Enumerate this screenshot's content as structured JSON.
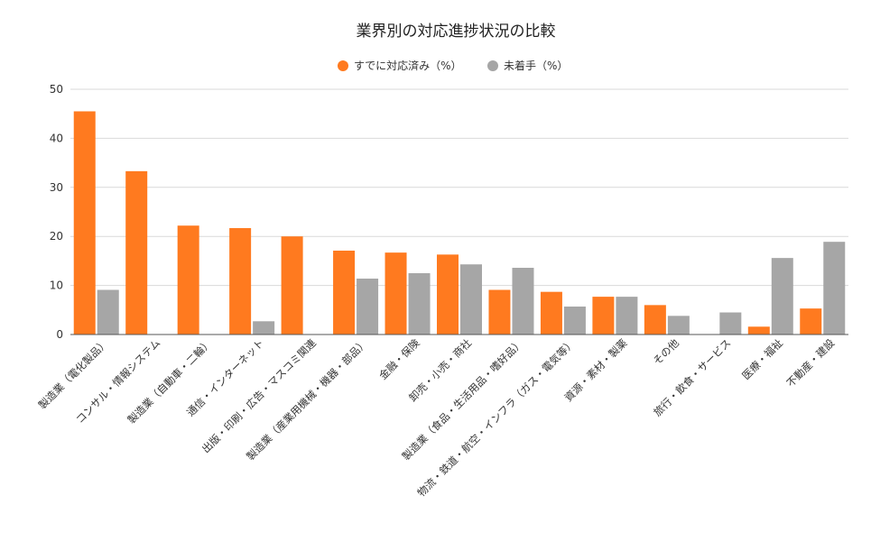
{
  "chart_data": {
    "type": "bar",
    "title": "業界別の対応進捗状況の比較",
    "xlabel": "",
    "ylabel": "",
    "ylim": [
      0,
      50
    ],
    "yticks": [
      0,
      10,
      20,
      30,
      40,
      50
    ],
    "grid": true,
    "legend_position": "top-center",
    "categories": [
      "製造業（電化製品）",
      "コンサル・情報システム",
      "製造業（自動車・二輪）",
      "通信・インターネット",
      "出版・印刷・広告・マスコミ関連",
      "製造業（産業用機械・機器・部品）",
      "金融・保険",
      "卸売・小売・商社",
      "製造業（食品・生活用品・嗜好品）",
      "物流・鉄道・航空・インフラ（ガス・電気等）",
      "資源・素材・製薬",
      "その他",
      "旅行・飲食・サービス",
      "医療・福祉",
      "不動産・建設"
    ],
    "series": [
      {
        "name": "すでに対応済み（%）",
        "color": "#ff7a1f",
        "values": [
          45.5,
          33.3,
          22.2,
          21.7,
          20.0,
          17.1,
          16.7,
          16.3,
          9.1,
          8.7,
          7.7,
          6.0,
          0,
          1.6,
          5.3
        ]
      },
      {
        "name": "未着手（%）",
        "color": "#a6a6a6",
        "values": [
          9.1,
          0,
          0,
          2.7,
          0,
          11.4,
          12.5,
          14.3,
          13.6,
          5.7,
          7.7,
          3.8,
          4.5,
          15.6,
          18.9
        ]
      }
    ]
  }
}
